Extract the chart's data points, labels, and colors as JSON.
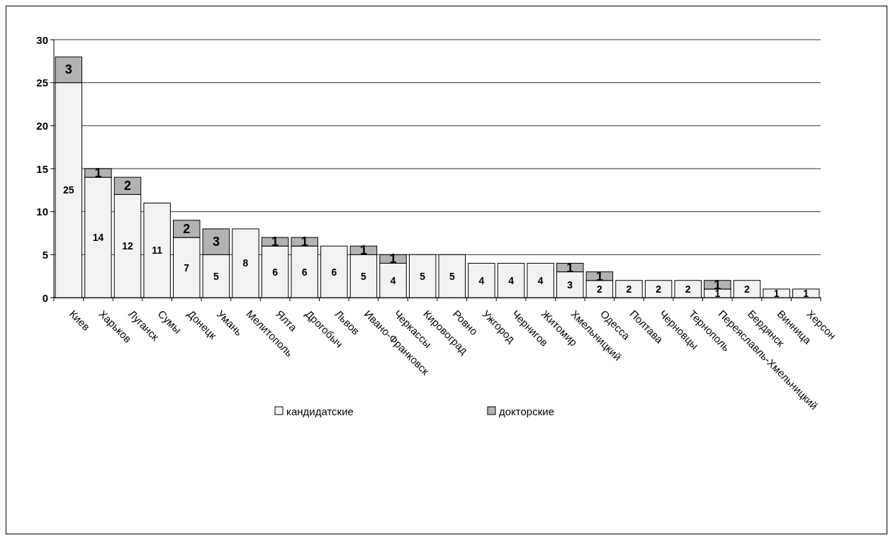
{
  "chart_data": {
    "type": "bar",
    "stacked": true,
    "categories": [
      "Киев",
      "Харьков",
      "Луганск",
      "Сумы",
      "Донецк",
      "Умань",
      "Мелитополь",
      "Ялта",
      "Дрогобыч",
      "Львов",
      "Ивано-Франковск",
      "Черкассы",
      "Кировоград",
      "Ровно",
      "Ужгород",
      "Чернигов",
      "Житомир",
      "Хмельницкий",
      "Одесса",
      "Полтава",
      "Черновцы",
      "Тернополь",
      "Переяславль-Хмельницкий",
      "Бердянск",
      "Винница",
      "Херсон"
    ],
    "series": [
      {
        "name": "кандидатские",
        "color": "#f2f2f2",
        "values": [
          25,
          14,
          12,
          11,
          7,
          5,
          8,
          6,
          6,
          6,
          5,
          4,
          5,
          5,
          4,
          4,
          4,
          3,
          2,
          2,
          2,
          2,
          1,
          2,
          1,
          1
        ]
      },
      {
        "name": "докторские",
        "color": "#b2b2b2",
        "values": [
          3,
          1,
          2,
          null,
          2,
          3,
          null,
          1,
          1,
          null,
          1,
          1,
          null,
          null,
          null,
          null,
          null,
          1,
          1,
          null,
          null,
          null,
          1,
          null,
          null,
          null
        ]
      }
    ],
    "ylim": [
      0,
      30
    ],
    "yticks": [
      0,
      5,
      10,
      15,
      20,
      25,
      30
    ],
    "grid": "y",
    "legend": "bottom",
    "data_labels": true
  }
}
